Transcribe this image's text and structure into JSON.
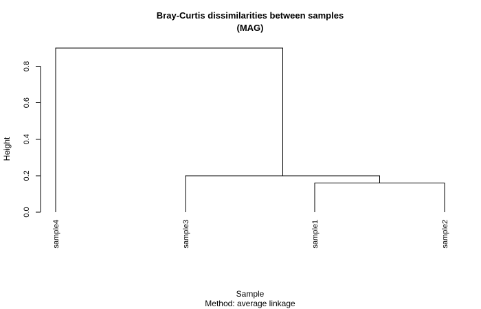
{
  "chart_data": {
    "type": "dendrogram",
    "title": "Bray-Curtis dissimilarities between samples",
    "subtitle": "(MAG)",
    "xlabel": "Sample",
    "sub_caption": "Method: average linkage",
    "ylabel": "Height",
    "ylim": [
      0,
      0.9
    ],
    "y_ticks": [
      0.0,
      0.2,
      0.4,
      0.6,
      0.8
    ],
    "y_tick_labels": [
      "0.0",
      "0.2",
      "0.4",
      "0.6",
      "0.8"
    ],
    "leaves": [
      "sample4",
      "sample3",
      "sample1",
      "sample2"
    ],
    "merges": [
      {
        "left": "sample1",
        "right": "sample2",
        "height": 0.16
      },
      {
        "left": "sample3",
        "right": "sample1+sample2",
        "height": 0.2
      },
      {
        "left": "sample4",
        "right": "sample3+sample1+sample2",
        "height": 0.9
      }
    ],
    "grid": false,
    "legend": "none"
  }
}
